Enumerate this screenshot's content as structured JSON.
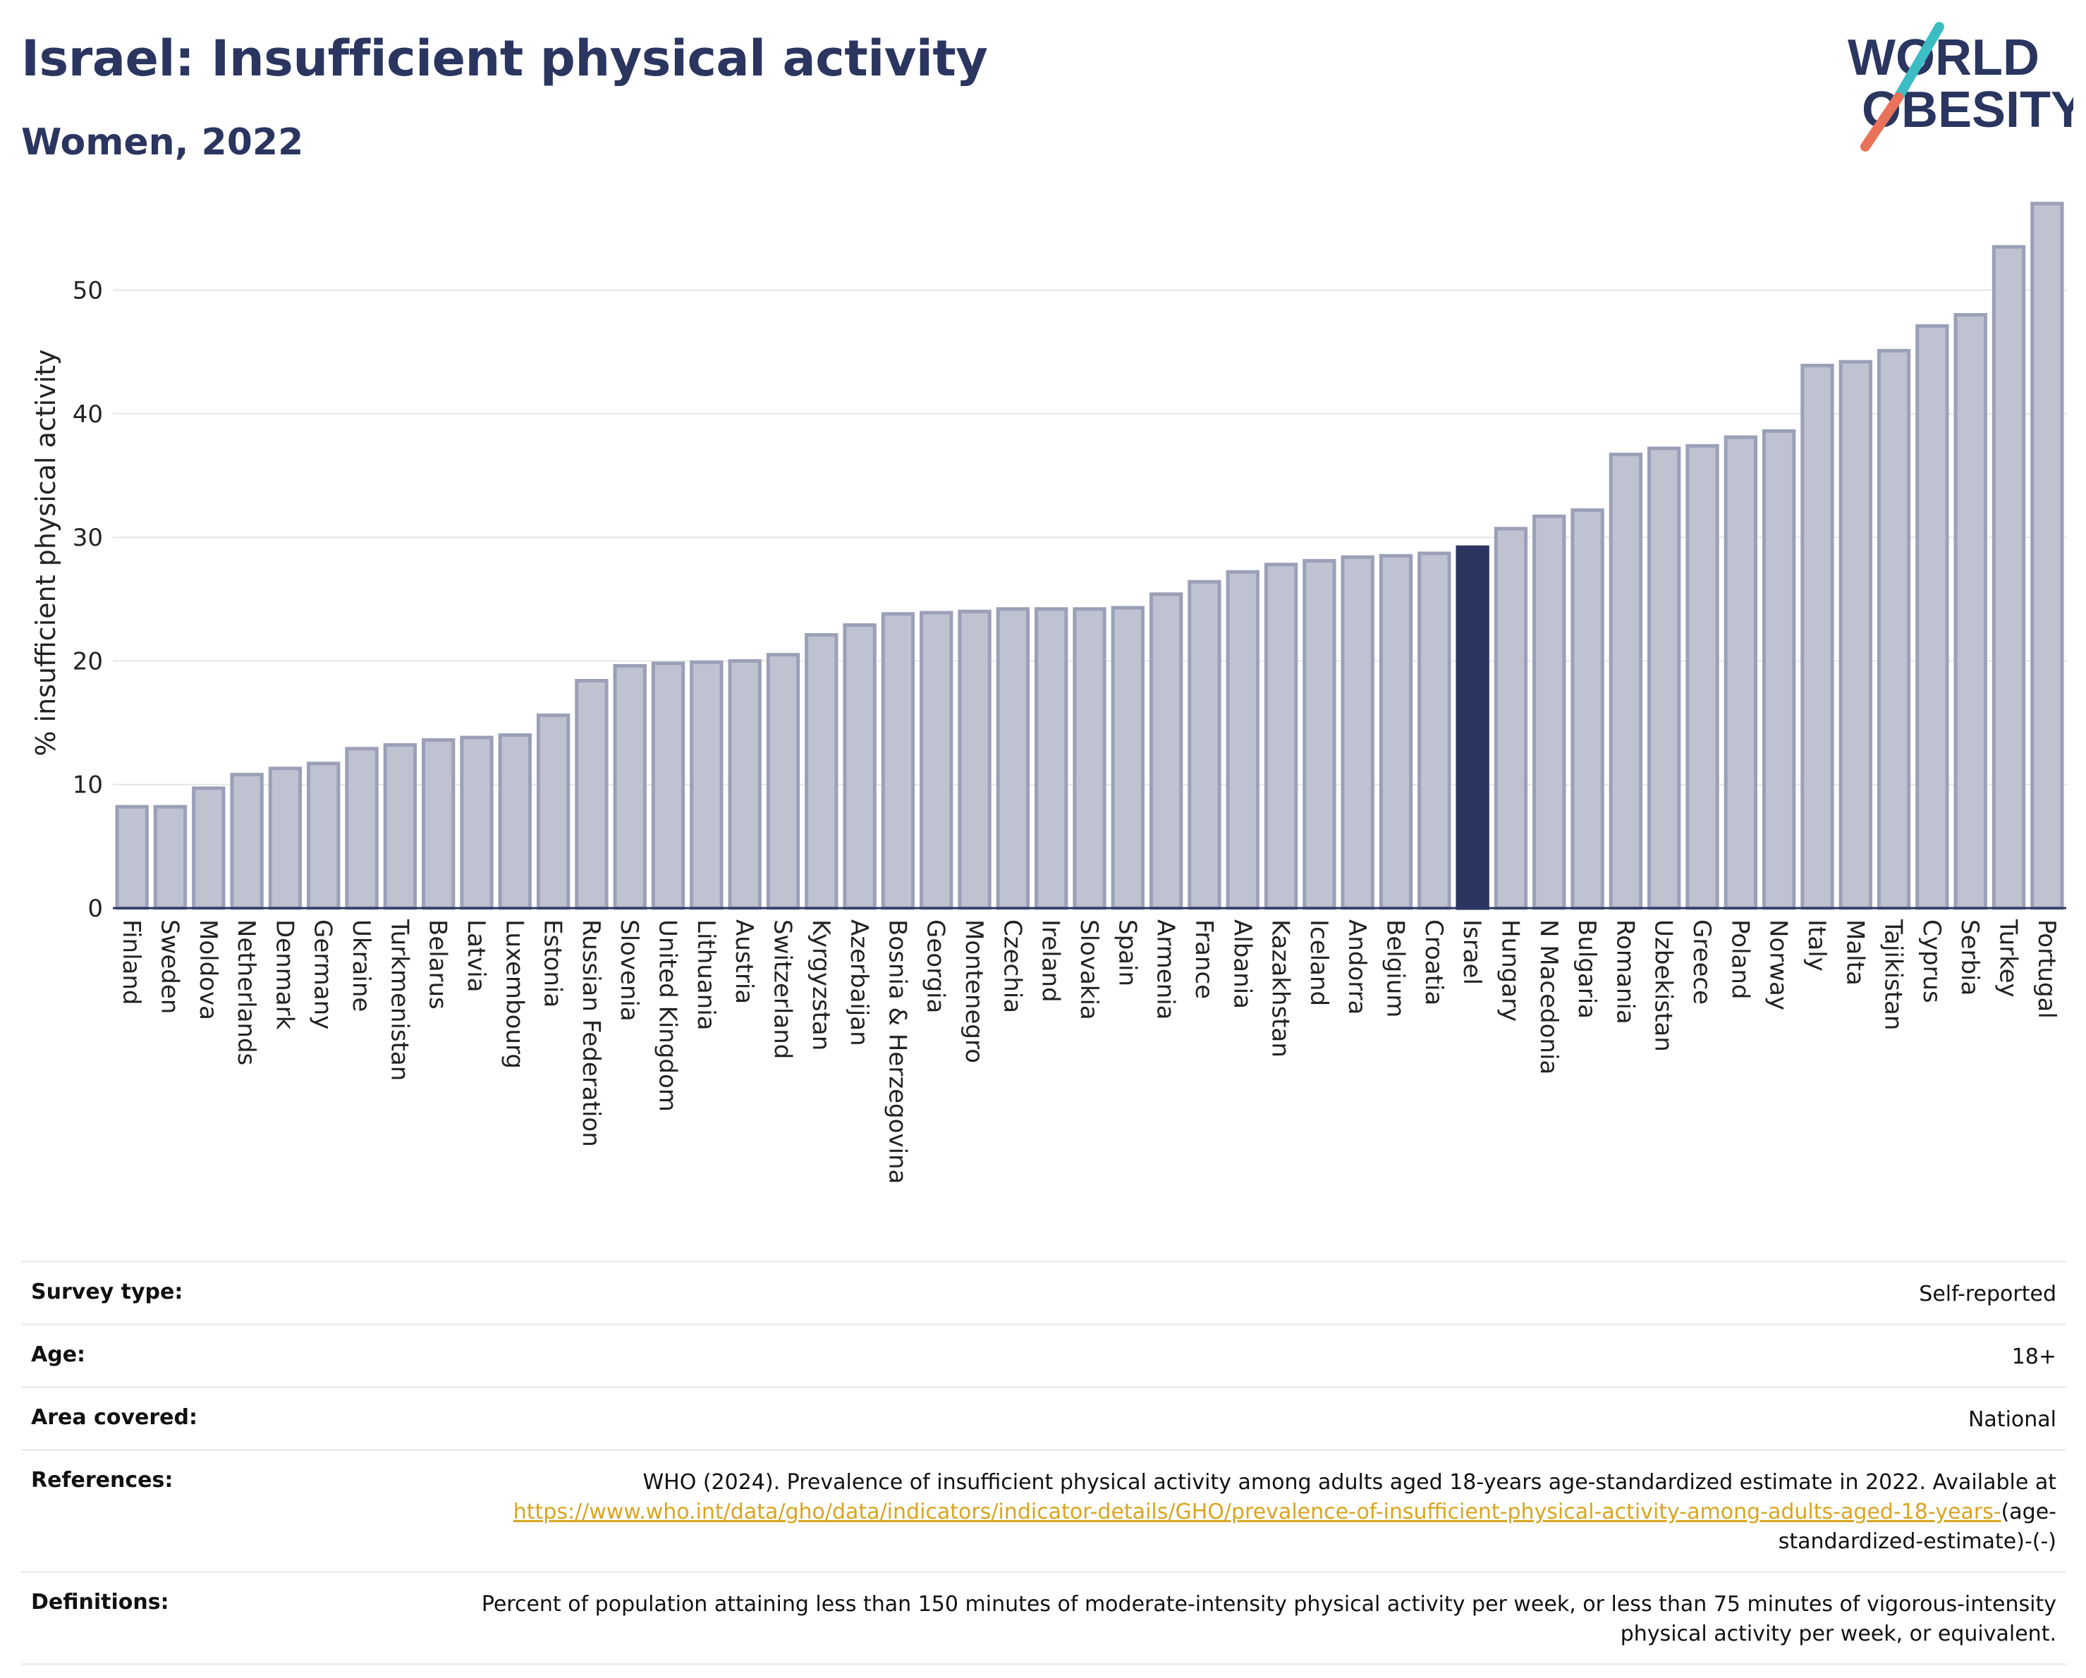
{
  "header": {
    "title": "Israel: Insufficient physical activity",
    "subtitle": "Women, 2022"
  },
  "logo": {
    "line1": "WORLD",
    "line2": "OBESITY",
    "accent_teal": "#3cbcc3",
    "accent_coral": "#e8735a"
  },
  "colors": {
    "highlight": "#2a3560",
    "bar_fill": "#bfc2d0",
    "bar_stroke": "#9ba0b8",
    "axis_text": "#222222",
    "link": "#d9a520"
  },
  "chart_data": {
    "type": "bar",
    "title": "Israel: Insufficient physical activity",
    "subtitle": "Women, 2022",
    "xlabel": "",
    "ylabel": "% insufficient physical activity",
    "ylim": [
      0,
      57.5
    ],
    "yticks": [
      0,
      10,
      20,
      30,
      40,
      50
    ],
    "grid": true,
    "highlight": "Israel",
    "categories": [
      "Finland",
      "Sweden",
      "Moldova",
      "Netherlands",
      "Denmark",
      "Germany",
      "Ukraine",
      "Turkmenistan",
      "Belarus",
      "Latvia",
      "Luxembourg",
      "Estonia",
      "Russian Federation",
      "Slovenia",
      "United Kingdom",
      "Lithuania",
      "Austria",
      "Switzerland",
      "Kyrgyzstan",
      "Azerbaijan",
      "Bosnia & Herzegovina",
      "Georgia",
      "Montenegro",
      "Czechia",
      "Ireland",
      "Slovakia",
      "Spain",
      "Armenia",
      "France",
      "Albania",
      "Kazakhstan",
      "Iceland",
      "Andorra",
      "Belgium",
      "Croatia",
      "Israel",
      "Hungary",
      "N Macedonia",
      "Bulgaria",
      "Romania",
      "Uzbekistan",
      "Greece",
      "Poland",
      "Norway",
      "Italy",
      "Malta",
      "Tajikistan",
      "Cyprus",
      "Serbia",
      "Turkey",
      "Portugal"
    ],
    "values": [
      8.2,
      8.2,
      9.7,
      10.8,
      11.3,
      11.7,
      12.9,
      13.2,
      13.6,
      13.8,
      14.0,
      15.6,
      18.4,
      19.6,
      19.8,
      19.9,
      20.0,
      20.5,
      22.1,
      22.9,
      23.8,
      23.9,
      24.0,
      24.2,
      24.2,
      24.2,
      24.3,
      25.4,
      26.4,
      27.2,
      27.8,
      28.1,
      28.4,
      28.5,
      28.7,
      29.2,
      30.7,
      31.7,
      32.2,
      36.7,
      37.2,
      37.4,
      38.1,
      38.6,
      43.9,
      44.2,
      45.1,
      47.1,
      48.0,
      53.5,
      57.0
    ]
  },
  "info": {
    "survey_type": {
      "label": "Survey type:",
      "value": "Self-reported"
    },
    "age": {
      "label": "Age:",
      "value": "18+"
    },
    "area": {
      "label": "Area covered:",
      "value": "National"
    },
    "references": {
      "label": "References:",
      "text": "WHO (2024). Prevalence of insufficient physical activity among adults aged 18-years age-standardized estimate in 2022. Available at",
      "link": "https://www.who.int/data/gho/data/indicators/indicator-details/GHO/prevalence-of-insufficient-physical-activity-among-adults-aged-18-years-",
      "suffix": "(age-standardized-estimate)-(-)"
    },
    "definitions": {
      "label": "Definitions:",
      "value": "Percent of population attaining less than 150 minutes of moderate-intensity physical activity per week, or less than 75 minutes of vigorous-intensity physical activity per week, or equivalent."
    }
  }
}
